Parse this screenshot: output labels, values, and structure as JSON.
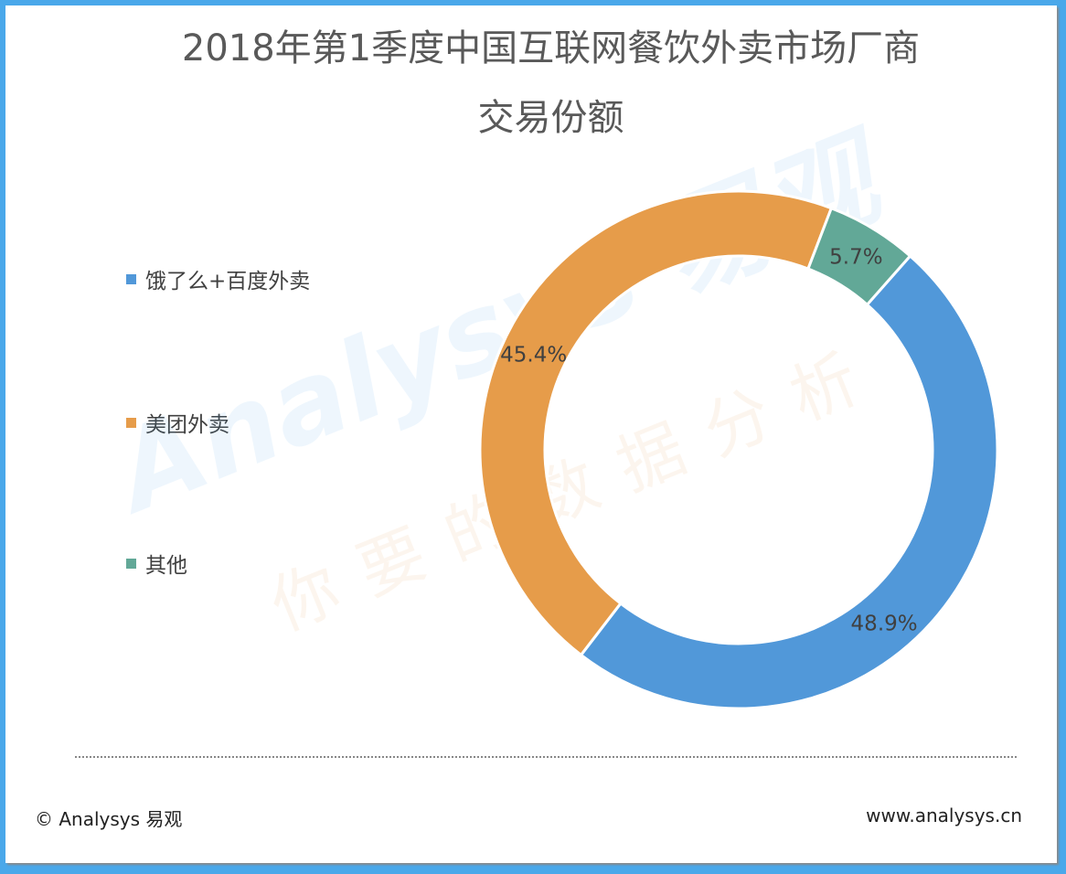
{
  "chart_data": {
    "type": "pie",
    "variant": "donut",
    "title_line1": "2018年第1季度中国互联网餐饮外卖市场厂商",
    "title_line2": "交易份额",
    "categories": [
      "饿了么+百度外卖",
      "美团外卖",
      "其他"
    ],
    "values": [
      48.9,
      45.4,
      5.7
    ],
    "data_labels": [
      "48.9%",
      "45.4%",
      "5.7%"
    ],
    "colors": [
      "#5198d9",
      "#e69c4a",
      "#62a897"
    ],
    "legend_position": "left"
  },
  "watermark": {
    "brand": "Analysys 易观",
    "slogan": "你要的数据分析"
  },
  "footer": {
    "copyright": "© Analysys 易观",
    "website": "www.analysys.cn"
  }
}
